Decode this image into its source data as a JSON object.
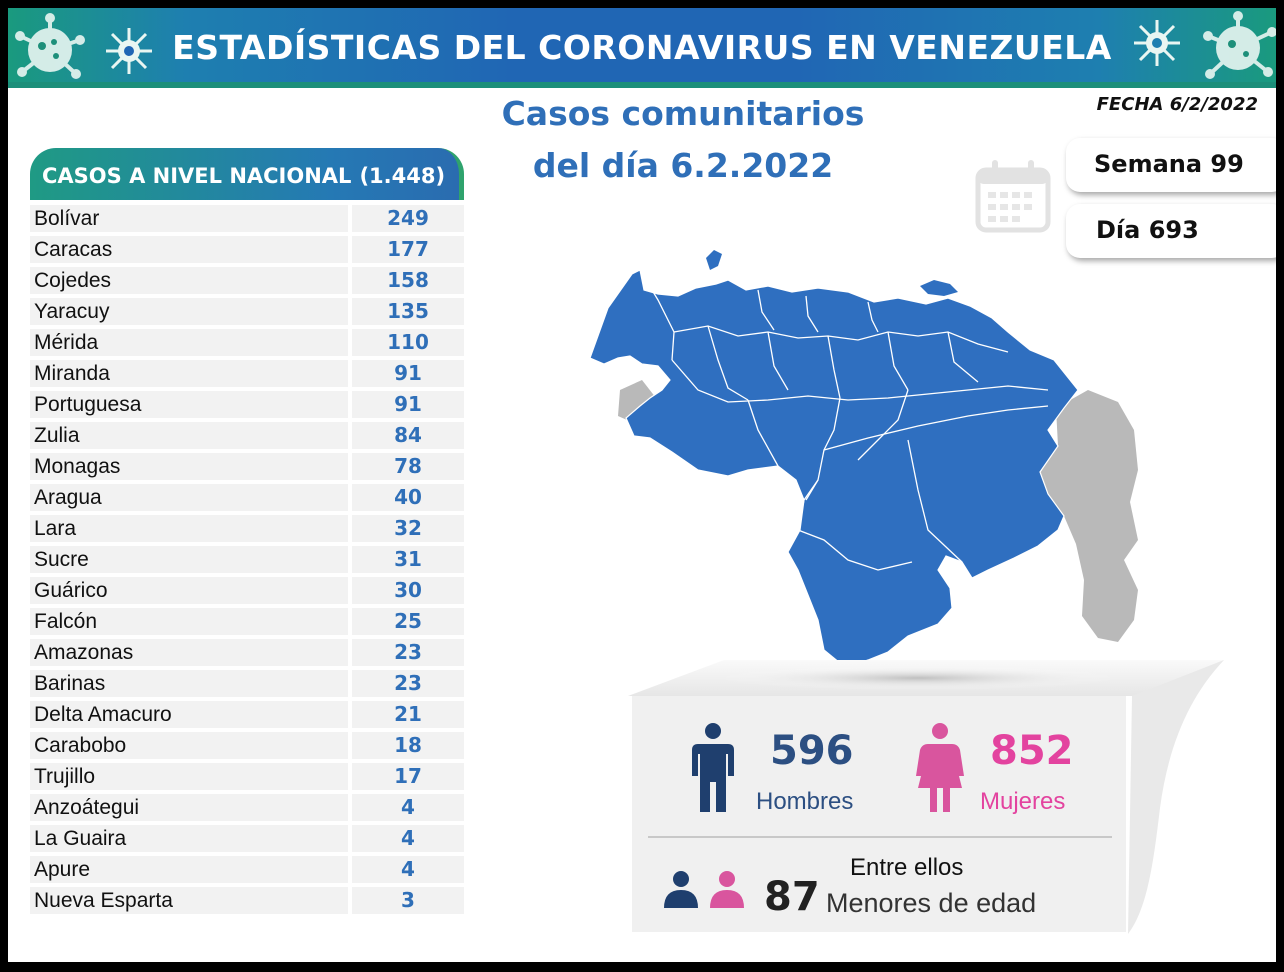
{
  "header": {
    "title": "ESTADÍSTICAS DEL CORONAVIRUS EN VENEZUELA",
    "subtitle_line1": "Casos comunitarios",
    "subtitle_line2": "del día 6.2.2022",
    "fecha": "FECHA 6/2/2022"
  },
  "calendar": {
    "semana": "Semana 99",
    "dia": "Día 693",
    "icon": "calendar-icon"
  },
  "national": {
    "label": "CASOS A NIVEL NACIONAL",
    "total": "(1.448)"
  },
  "states": [
    {
      "name": "Bolívar",
      "value": "249"
    },
    {
      "name": "Caracas",
      "value": "177"
    },
    {
      "name": "Cojedes",
      "value": "158"
    },
    {
      "name": "Yaracuy",
      "value": "135"
    },
    {
      "name": "Mérida",
      "value": "110"
    },
    {
      "name": "Miranda",
      "value": "91"
    },
    {
      "name": "Portuguesa",
      "value": "91"
    },
    {
      "name": "Zulia",
      "value": "84"
    },
    {
      "name": "Monagas",
      "value": "78"
    },
    {
      "name": "Aragua",
      "value": "40"
    },
    {
      "name": "Lara",
      "value": "32"
    },
    {
      "name": "Sucre",
      "value": "31"
    },
    {
      "name": "Guárico",
      "value": "30"
    },
    {
      "name": "Falcón",
      "value": "25"
    },
    {
      "name": "Amazonas",
      "value": "23"
    },
    {
      "name": "Barinas",
      "value": "23"
    },
    {
      "name": "Delta Amacuro",
      "value": "21"
    },
    {
      "name": "Carabobo",
      "value": "18"
    },
    {
      "name": "Trujillo",
      "value": "17"
    },
    {
      "name": "Anzoátegui",
      "value": "4"
    },
    {
      "name": "La Guaira",
      "value": "4"
    },
    {
      "name": "Apure",
      "value": "4"
    },
    {
      "name": "Nueva Esparta",
      "value": "3"
    }
  ],
  "gender": {
    "men_count": "596",
    "men_label": "Hombres",
    "women_count": "852",
    "women_label": "Mujeres",
    "men_color": "#1f3f6e",
    "women_color": "#e3439f"
  },
  "minors": {
    "intro": "Entre ellos",
    "count": "87",
    "label": "Menores de edad"
  },
  "colors": {
    "map_blue": "#2f6fc0",
    "map_gray": "#b9b9b9",
    "accent_blue": "#2f6fb8"
  }
}
